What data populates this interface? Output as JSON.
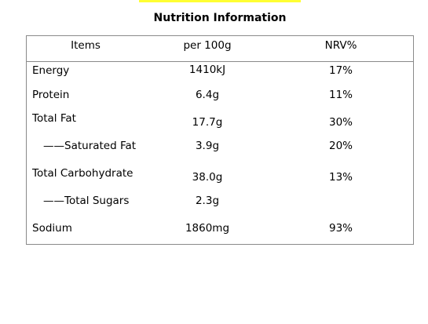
{
  "title": "Nutrition Information",
  "accent": "#ffff33",
  "headers": {
    "items": "Items",
    "per": "per 100g",
    "nrv": "NRV%"
  },
  "rows": [
    {
      "name": "Energy",
      "per": "1410kJ",
      "nrv": "17%"
    },
    {
      "name": "Protein",
      "per": "6.4g",
      "nrv": "11%"
    },
    {
      "name": "Total Fat",
      "per": "17.7g",
      "nrv": "30%"
    },
    {
      "name": "——Saturated Fat",
      "per": "3.9g",
      "nrv": "20%"
    },
    {
      "name": "Total Carbohydrate",
      "per": "38.0g",
      "nrv": "13%"
    },
    {
      "name": "——Total Sugars",
      "per": "2.3g",
      "nrv": ""
    },
    {
      "name": "Sodium",
      "per": "1860mg",
      "nrv": "93%"
    }
  ]
}
